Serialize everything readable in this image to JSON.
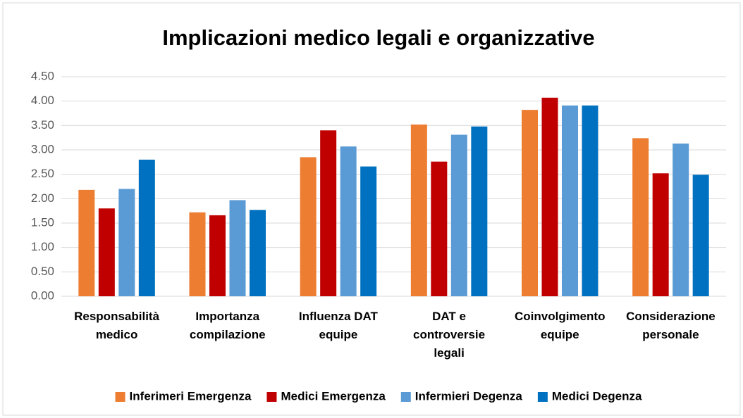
{
  "chart_data": {
    "type": "bar",
    "title": "Implicazioni medico legali e organizzative",
    "categories": [
      "Responsabilità medico",
      "Importanza compilazione",
      "Influenza DAT equipe",
      "DAT e controversie legali",
      "Coinvolgimento equipe",
      "Considerazione personale"
    ],
    "series": [
      {
        "name": "Inferimeri Emergenza",
        "color": "#ed7d31",
        "values": [
          2.18,
          1.72,
          2.85,
          3.52,
          3.82,
          3.24
        ]
      },
      {
        "name": "Medici Emergenza",
        "color": "#c00000",
        "values": [
          1.8,
          1.66,
          3.4,
          2.76,
          4.07,
          2.52
        ]
      },
      {
        "name": "Infermieri Degenza",
        "color": "#5b9bd5",
        "values": [
          2.2,
          1.97,
          3.07,
          3.31,
          3.91,
          3.13
        ]
      },
      {
        "name": "Medici Degenza",
        "color": "#0070c0",
        "values": [
          2.8,
          1.77,
          2.66,
          3.48,
          3.91,
          2.49
        ]
      }
    ],
    "ylim": [
      0,
      4.5
    ],
    "yticks": [
      {
        "value": 0,
        "label": "0.00"
      },
      {
        "value": 0.5,
        "label": "0.50"
      },
      {
        "value": 1,
        "label": "1.00"
      },
      {
        "value": 1.5,
        "label": "1.50"
      },
      {
        "value": 2,
        "label": "2.00"
      },
      {
        "value": 2.5,
        "label": "2.50"
      },
      {
        "value": 3,
        "label": "3.00"
      },
      {
        "value": 3.5,
        "label": "3.50"
      },
      {
        "value": 4,
        "label": "4.00"
      },
      {
        "value": 4.5,
        "label": "4.50"
      }
    ],
    "grid": true,
    "legend": "bottom"
  }
}
